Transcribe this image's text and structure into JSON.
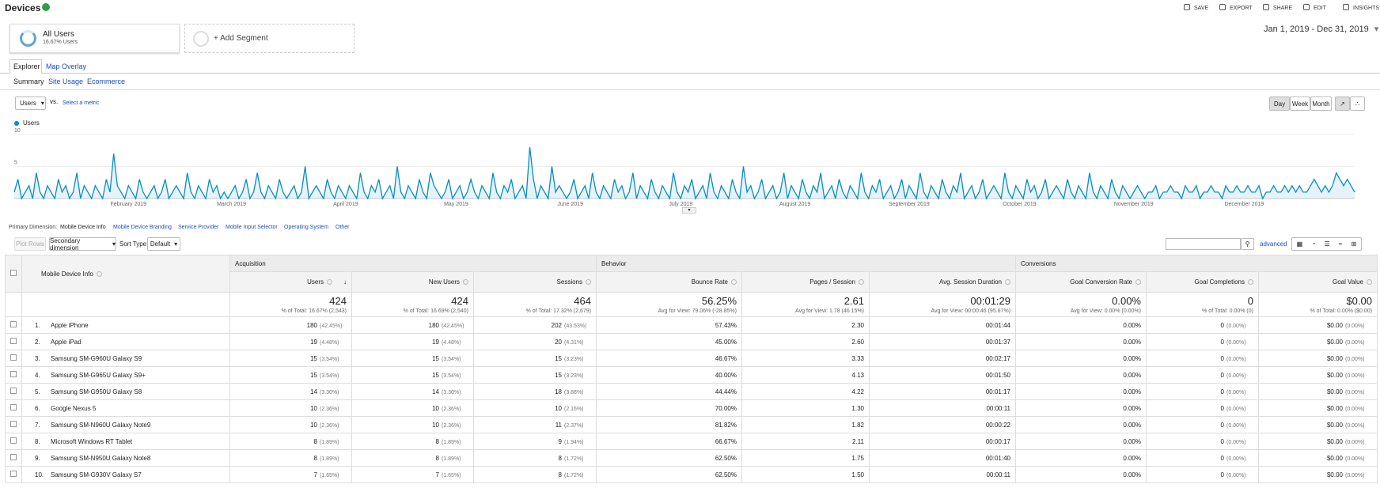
{
  "header": {
    "title": "Devices",
    "actions": [
      "SAVE",
      "EXPORT",
      "SHARE",
      "EDIT",
      "INSIGHTS"
    ]
  },
  "segments": {
    "name": "All Users",
    "detail": "16.67% Users",
    "add": "+ Add Segment"
  },
  "date_range": "Jan 1, 2019 - Dec 31, 2019",
  "tabs": [
    "Explorer",
    "Map Overlay"
  ],
  "subtabs": [
    "Summary",
    "Site Usage",
    "Ecommerce"
  ],
  "metric_selector": {
    "metric": "Users",
    "vs": "vs.",
    "select": "Select a metric"
  },
  "granularity": [
    "Day",
    "Week",
    "Month"
  ],
  "chart_data": {
    "type": "line",
    "series": [
      {
        "name": "Users",
        "color": "#058dc7",
        "values": [
          1,
          3,
          0,
          1,
          2,
          0,
          4,
          1,
          0,
          2,
          1,
          0,
          3,
          1,
          2,
          0,
          1,
          4,
          0,
          2,
          1,
          0,
          2,
          1,
          0,
          3,
          1,
          7,
          2,
          1,
          0,
          2,
          1,
          0,
          3,
          1,
          0,
          1,
          2,
          0,
          1,
          3,
          0,
          1,
          2,
          1,
          0,
          4,
          1,
          0,
          2,
          1,
          0,
          3,
          1,
          2,
          0,
          1,
          0,
          1,
          2,
          0,
          1,
          3,
          0,
          1,
          4,
          1,
          0,
          2,
          1,
          0,
          3,
          1,
          0,
          1,
          2,
          0,
          1,
          5,
          0,
          1,
          2,
          1,
          0,
          3,
          1,
          0,
          2,
          1,
          0,
          2,
          1,
          0,
          4,
          1,
          0,
          2,
          1,
          3,
          0,
          1,
          2,
          0,
          5,
          1,
          0,
          2,
          1,
          0,
          3,
          1,
          0,
          4,
          2,
          1,
          0,
          1,
          3,
          0,
          1,
          2,
          0,
          1,
          3,
          1,
          0,
          2,
          1,
          0,
          4,
          1,
          0,
          2,
          1,
          3,
          0,
          1,
          2,
          0,
          8,
          3,
          0,
          2,
          1,
          0,
          5,
          1,
          2,
          1,
          0,
          1,
          3,
          0,
          1,
          2,
          0,
          4,
          1,
          0,
          2,
          1,
          0,
          3,
          1,
          2,
          0,
          1,
          4,
          0,
          2,
          1,
          0,
          3,
          1,
          0,
          2,
          1,
          0,
          4,
          1,
          0,
          2,
          1,
          3,
          0,
          1,
          2,
          0,
          4,
          1,
          0,
          2,
          1,
          0,
          3,
          1,
          0,
          5,
          1,
          2,
          0,
          1,
          3,
          0,
          1,
          2,
          0,
          1,
          4,
          0,
          2,
          1,
          0,
          3,
          1,
          0,
          2,
          1,
          4,
          0,
          1,
          2,
          0,
          3,
          1,
          0,
          2,
          1,
          0,
          4,
          1,
          0,
          2,
          1,
          3,
          0,
          1,
          2,
          0,
          1,
          3,
          0,
          2,
          1,
          0,
          4,
          1,
          0,
          2,
          1,
          0,
          3,
          1,
          0,
          2,
          1,
          4,
          0,
          1,
          2,
          0,
          1,
          3,
          0,
          1,
          2,
          1,
          0,
          4,
          1,
          0,
          2,
          1,
          0,
          3,
          1,
          2,
          0,
          1,
          3,
          0,
          1,
          2,
          1,
          0,
          3,
          1,
          0,
          2,
          1,
          0,
          4,
          1,
          0,
          2,
          1,
          0,
          3,
          1,
          0,
          2,
          1,
          0,
          1,
          2,
          1,
          0,
          1,
          1,
          2,
          0,
          1,
          1,
          2,
          1,
          1,
          0,
          2,
          1,
          1,
          2,
          0,
          1,
          1,
          2,
          1,
          1,
          0,
          2,
          1,
          1,
          2,
          1,
          1,
          2,
          1,
          1,
          2,
          0,
          1,
          1,
          2,
          1,
          1,
          2,
          1,
          2,
          1,
          2,
          1,
          1,
          2,
          3,
          2,
          1,
          2,
          1,
          2,
          4,
          3,
          2,
          3,
          2,
          1
        ]
      }
    ],
    "x_labels": [
      "February 2019",
      "March 2019",
      "April 2019",
      "May 2019",
      "June 2019",
      "July 2019",
      "August 2019",
      "September 2019",
      "October 2019",
      "November 2019",
      "December 2019"
    ],
    "ylim": [
      0,
      10
    ],
    "yticks": [
      5,
      10
    ],
    "grid": true
  },
  "dimensions": {
    "label": "Primary Dimension:",
    "items": [
      "Mobile Device Info",
      "Mobile Device Branding",
      "Service Provider",
      "Mobile Input Selector",
      "Operating System",
      "Other"
    ]
  },
  "toolbar": {
    "plot_rows": "Plot Rows",
    "secondary": "Secondary dimension",
    "sort_label": "Sort Type:",
    "sort": "Default",
    "advanced": "advanced"
  },
  "table": {
    "dimension_header": "Mobile Device Info",
    "groups": [
      "Acquisition",
      "Behavior",
      "Conversions"
    ],
    "columns": [
      "Users",
      "New Users",
      "Sessions",
      "Bounce Rate",
      "Pages / Session",
      "Avg. Session Duration",
      "Goal Conversion Rate",
      "Goal Completions",
      "Goal Value"
    ],
    "totals": [
      [
        "424",
        "% of Total: 16.67% (2,543)"
      ],
      [
        "424",
        "% of Total: 16.69% (2,540)"
      ],
      [
        "464",
        "% of Total: 17.32% (2,679)"
      ],
      [
        "56.25%",
        "Avg for View: 79.06% (-28.85%)"
      ],
      [
        "2.61",
        "Avg for View: 1.78 (46.15%)"
      ],
      [
        "00:01:29",
        "Avg for View: 00:00:46 (95.67%)"
      ],
      [
        "0.00%",
        "Avg for View: 0.00% (0.00%)"
      ],
      [
        "0",
        "% of Total: 0.00% (0)"
      ],
      [
        "$0.00",
        "% of Total: 0.00% ($0.00)"
      ]
    ],
    "rows": [
      {
        "index": "1.",
        "device": "Apple iPhone",
        "cells": [
          [
            "180",
            "(42.45%)"
          ],
          [
            "180",
            "(42.45%)"
          ],
          [
            "202",
            "(43.53%)"
          ],
          [
            "57.43%"
          ],
          [
            "2.30"
          ],
          [
            "00:01:44"
          ],
          [
            "0.00%"
          ],
          [
            "0",
            "(0.00%)"
          ],
          [
            "$0.00",
            "(0.00%)"
          ]
        ]
      },
      {
        "index": "2.",
        "device": "Apple iPad",
        "cells": [
          [
            "19",
            "(4.48%)"
          ],
          [
            "19",
            "(4.48%)"
          ],
          [
            "20",
            "(4.31%)"
          ],
          [
            "45.00%"
          ],
          [
            "2.60"
          ],
          [
            "00:01:37"
          ],
          [
            "0.00%"
          ],
          [
            "0",
            "(0.00%)"
          ],
          [
            "$0.00",
            "(0.00%)"
          ]
        ]
      },
      {
        "index": "3.",
        "device": "Samsung SM-G960U Galaxy S9",
        "cells": [
          [
            "15",
            "(3.54%)"
          ],
          [
            "15",
            "(3.54%)"
          ],
          [
            "15",
            "(3.23%)"
          ],
          [
            "46.67%"
          ],
          [
            "3.33"
          ],
          [
            "00:02:17"
          ],
          [
            "0.00%"
          ],
          [
            "0",
            "(0.00%)"
          ],
          [
            "$0.00",
            "(0.00%)"
          ]
        ]
      },
      {
        "index": "4.",
        "device": "Samsung SM-G965U Galaxy S9+",
        "cells": [
          [
            "15",
            "(3.54%)"
          ],
          [
            "15",
            "(3.54%)"
          ],
          [
            "15",
            "(3.23%)"
          ],
          [
            "40.00%"
          ],
          [
            "4.13"
          ],
          [
            "00:01:50"
          ],
          [
            "0.00%"
          ],
          [
            "0",
            "(0.00%)"
          ],
          [
            "$0.00",
            "(0.00%)"
          ]
        ]
      },
      {
        "index": "5.",
        "device": "Samsung SM-G950U Galaxy S8",
        "cells": [
          [
            "14",
            "(3.30%)"
          ],
          [
            "14",
            "(3.30%)"
          ],
          [
            "18",
            "(3.88%)"
          ],
          [
            "44.44%"
          ],
          [
            "4.22"
          ],
          [
            "00:01:17"
          ],
          [
            "0.00%"
          ],
          [
            "0",
            "(0.00%)"
          ],
          [
            "$0.00",
            "(0.00%)"
          ]
        ]
      },
      {
        "index": "6.",
        "device": "Google Nexus 5",
        "cells": [
          [
            "10",
            "(2.36%)"
          ],
          [
            "10",
            "(2.36%)"
          ],
          [
            "10",
            "(2.16%)"
          ],
          [
            "70.00%"
          ],
          [
            "1.30"
          ],
          [
            "00:00:11"
          ],
          [
            "0.00%"
          ],
          [
            "0",
            "(0.00%)"
          ],
          [
            "$0.00",
            "(0.00%)"
          ]
        ]
      },
      {
        "index": "7.",
        "device": "Samsung SM-N960U Galaxy Note9",
        "cells": [
          [
            "10",
            "(2.36%)"
          ],
          [
            "10",
            "(2.36%)"
          ],
          [
            "11",
            "(2.37%)"
          ],
          [
            "81.82%"
          ],
          [
            "1.82"
          ],
          [
            "00:00:22"
          ],
          [
            "0.00%"
          ],
          [
            "0",
            "(0.00%)"
          ],
          [
            "$0.00",
            "(0.00%)"
          ]
        ]
      },
      {
        "index": "8.",
        "device": "Microsoft Windows RT Tablet",
        "cells": [
          [
            "8",
            "(1.89%)"
          ],
          [
            "8",
            "(1.89%)"
          ],
          [
            "9",
            "(1.94%)"
          ],
          [
            "66.67%"
          ],
          [
            "2.11"
          ],
          [
            "00:00:17"
          ],
          [
            "0.00%"
          ],
          [
            "0",
            "(0.00%)"
          ],
          [
            "$0.00",
            "(0.00%)"
          ]
        ]
      },
      {
        "index": "9.",
        "device": "Samsung SM-N950U Galaxy Note8",
        "cells": [
          [
            "8",
            "(1.89%)"
          ],
          [
            "8",
            "(1.89%)"
          ],
          [
            "8",
            "(1.72%)"
          ],
          [
            "62.50%"
          ],
          [
            "1.75"
          ],
          [
            "00:01:40"
          ],
          [
            "0.00%"
          ],
          [
            "0",
            "(0.00%)"
          ],
          [
            "$0.00",
            "(0.00%)"
          ]
        ]
      },
      {
        "index": "10.",
        "device": "Samsung SM-G930V Galaxy S7",
        "cells": [
          [
            "7",
            "(1.65%)"
          ],
          [
            "7",
            "(1.65%)"
          ],
          [
            "8",
            "(1.72%)"
          ],
          [
            "62.50%"
          ],
          [
            "1.50"
          ],
          [
            "00:00:11"
          ],
          [
            "0.00%"
          ],
          [
            "0",
            "(0.00%)"
          ],
          [
            "$0.00",
            "(0.00%)"
          ]
        ]
      }
    ]
  }
}
